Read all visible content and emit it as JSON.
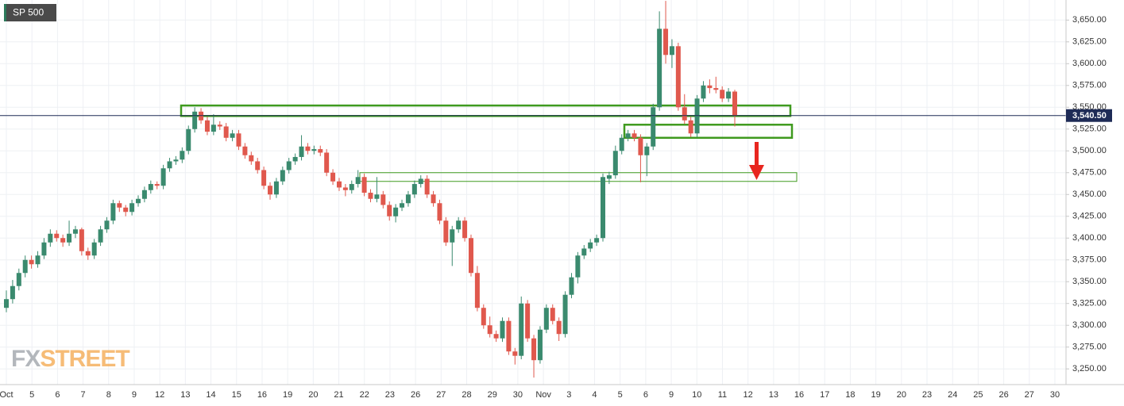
{
  "chart_data": {
    "type": "candlestick",
    "title": "SP 500",
    "watermark": [
      "FX",
      "STREET"
    ],
    "up_color": "#3a8a6e",
    "down_color": "#e0584d",
    "zone_color": "#3f9a1f",
    "grid": true,
    "ylim": [
      3232,
      3673
    ],
    "yticks": [
      {
        "value": 3250,
        "label": "3,250.00"
      },
      {
        "value": 3275,
        "label": "3,275.00"
      },
      {
        "value": 3300,
        "label": "3,300.00"
      },
      {
        "value": 3325,
        "label": "3,325.00"
      },
      {
        "value": 3350,
        "label": "3,350.00"
      },
      {
        "value": 3375,
        "label": "3,375.00"
      },
      {
        "value": 3400,
        "label": "3,400.00"
      },
      {
        "value": 3425,
        "label": "3,425.00"
      },
      {
        "value": 3450,
        "label": "3,450.00"
      },
      {
        "value": 3475,
        "label": "3,475.00"
      },
      {
        "value": 3500,
        "label": "3,500.00"
      },
      {
        "value": 3525,
        "label": "3,525.00"
      },
      {
        "value": 3550,
        "label": "3,550.00"
      },
      {
        "value": 3575,
        "label": "3,575.00"
      },
      {
        "value": 3600,
        "label": "3,600.00"
      },
      {
        "value": 3625,
        "label": "3,625.00"
      },
      {
        "value": 3650,
        "label": "3,650.00"
      }
    ],
    "last_price": {
      "value": 3540.5,
      "label": "3,540.50"
    },
    "zones": [
      [
        3540,
        3552
      ],
      [
        3515,
        3530
      ],
      [
        3465,
        3475
      ]
    ],
    "categories": [
      "Oct",
      "5",
      "6",
      "7",
      "8",
      "9",
      "12",
      "13",
      "14",
      "15",
      "16",
      "19",
      "20",
      "21",
      "22",
      "23",
      "26",
      "27",
      "28",
      "29",
      "30",
      "Nov",
      "3",
      "4",
      "5",
      "6",
      "9",
      "10",
      "11",
      "12",
      "13",
      "16",
      "17",
      "18",
      "19",
      "20",
      "23",
      "24",
      "25",
      "26",
      "27",
      "30"
    ],
    "candles": [
      [
        3320,
        3340,
        3315,
        3330
      ],
      [
        3330,
        3352,
        3325,
        3345
      ],
      [
        3345,
        3365,
        3340,
        3360
      ],
      [
        3360,
        3380,
        3355,
        3375
      ],
      [
        3375,
        3380,
        3365,
        3370
      ],
      [
        3370,
        3385,
        3366,
        3380
      ],
      [
        3380,
        3400,
        3376,
        3395
      ],
      [
        3395,
        3410,
        3390,
        3405
      ],
      [
        3405,
        3409,
        3396,
        3400
      ],
      [
        3400,
        3404,
        3390,
        3395
      ],
      [
        3395,
        3420,
        3391,
        3405
      ],
      [
        3405,
        3414,
        3400,
        3410
      ],
      [
        3410,
        3412,
        3380,
        3385
      ],
      [
        3385,
        3389,
        3375,
        3380
      ],
      [
        3380,
        3399,
        3376,
        3395
      ],
      [
        3395,
        3414,
        3391,
        3410
      ],
      [
        3410,
        3424,
        3406,
        3420
      ],
      [
        3420,
        3444,
        3416,
        3440
      ],
      [
        3440,
        3443,
        3430,
        3435
      ],
      [
        3435,
        3438,
        3425,
        3430
      ],
      [
        3430,
        3444,
        3426,
        3440
      ],
      [
        3440,
        3449,
        3436,
        3445
      ],
      [
        3445,
        3459,
        3441,
        3455
      ],
      [
        3455,
        3466,
        3451,
        3462
      ],
      [
        3462,
        3465,
        3456,
        3460
      ],
      [
        3460,
        3484,
        3456,
        3480
      ],
      [
        3480,
        3492,
        3476,
        3488
      ],
      [
        3488,
        3494,
        3484,
        3490
      ],
      [
        3490,
        3504,
        3486,
        3500
      ],
      [
        3500,
        3529,
        3496,
        3525
      ],
      [
        3525,
        3550,
        3521,
        3545
      ],
      [
        3545,
        3549,
        3531,
        3535
      ],
      [
        3535,
        3539,
        3518,
        3522
      ],
      [
        3522,
        3542,
        3518,
        3530
      ],
      [
        3530,
        3534,
        3524,
        3528
      ],
      [
        3528,
        3532,
        3511,
        3515
      ],
      [
        3515,
        3524,
        3511,
        3520
      ],
      [
        3520,
        3524,
        3501,
        3505
      ],
      [
        3505,
        3509,
        3491,
        3495
      ],
      [
        3495,
        3499,
        3484,
        3488
      ],
      [
        3488,
        3492,
        3474,
        3478
      ],
      [
        3478,
        3482,
        3456,
        3460
      ],
      [
        3460,
        3464,
        3444,
        3450
      ],
      [
        3450,
        3469,
        3446,
        3465
      ],
      [
        3465,
        3482,
        3461,
        3478
      ],
      [
        3478,
        3492,
        3474,
        3488
      ],
      [
        3488,
        3497,
        3484,
        3493
      ],
      [
        3493,
        3518,
        3489,
        3505
      ],
      [
        3505,
        3509,
        3496,
        3500
      ],
      [
        3500,
        3506,
        3496,
        3502
      ],
      [
        3502,
        3506,
        3494,
        3498
      ],
      [
        3498,
        3502,
        3471,
        3475
      ],
      [
        3475,
        3479,
        3461,
        3465
      ],
      [
        3465,
        3469,
        3454,
        3458
      ],
      [
        3458,
        3462,
        3448,
        3455
      ],
      [
        3455,
        3466,
        3451,
        3462
      ],
      [
        3462,
        3478,
        3458,
        3470
      ],
      [
        3470,
        3474,
        3448,
        3452
      ],
      [
        3452,
        3456,
        3441,
        3445
      ],
      [
        3445,
        3470,
        3441,
        3450
      ],
      [
        3450,
        3454,
        3434,
        3438
      ],
      [
        3438,
        3442,
        3420,
        3425
      ],
      [
        3425,
        3439,
        3418,
        3435
      ],
      [
        3435,
        3444,
        3431,
        3440
      ],
      [
        3440,
        3454,
        3436,
        3450
      ],
      [
        3450,
        3466,
        3446,
        3462
      ],
      [
        3462,
        3472,
        3458,
        3468
      ],
      [
        3468,
        3472,
        3446,
        3450
      ],
      [
        3450,
        3454,
        3436,
        3440
      ],
      [
        3440,
        3444,
        3416,
        3420
      ],
      [
        3420,
        3424,
        3391,
        3395
      ],
      [
        3395,
        3414,
        3368,
        3410
      ],
      [
        3410,
        3424,
        3406,
        3420
      ],
      [
        3420,
        3424,
        3396,
        3400
      ],
      [
        3400,
        3404,
        3356,
        3360
      ],
      [
        3360,
        3368,
        3316,
        3320
      ],
      [
        3320,
        3324,
        3296,
        3300
      ],
      [
        3300,
        3310,
        3286,
        3290
      ],
      [
        3290,
        3294,
        3281,
        3285
      ],
      [
        3285,
        3309,
        3281,
        3305
      ],
      [
        3305,
        3309,
        3266,
        3270
      ],
      [
        3270,
        3274,
        3255,
        3265
      ],
      [
        3265,
        3333,
        3261,
        3325
      ],
      [
        3325,
        3329,
        3281,
        3285
      ],
      [
        3285,
        3289,
        3240,
        3260
      ],
      [
        3260,
        3299,
        3256,
        3295
      ],
      [
        3295,
        3324,
        3291,
        3320
      ],
      [
        3320,
        3324,
        3301,
        3305
      ],
      [
        3305,
        3309,
        3282,
        3290
      ],
      [
        3290,
        3339,
        3286,
        3335
      ],
      [
        3335,
        3360,
        3331,
        3355
      ],
      [
        3355,
        3384,
        3348,
        3380
      ],
      [
        3380,
        3392,
        3376,
        3388
      ],
      [
        3388,
        3399,
        3384,
        3395
      ],
      [
        3395,
        3404,
        3391,
        3400
      ],
      [
        3400,
        3474,
        3396,
        3470
      ],
      [
        3468,
        3476,
        3462,
        3472
      ],
      [
        3472,
        3506,
        3468,
        3500
      ],
      [
        3500,
        3519,
        3496,
        3515
      ],
      [
        3515,
        3524,
        3511,
        3520
      ],
      [
        3520,
        3524,
        3511,
        3515
      ],
      [
        3515,
        3519,
        3464,
        3495
      ],
      [
        3495,
        3509,
        3471,
        3505
      ],
      [
        3505,
        3554,
        3501,
        3550
      ],
      [
        3550,
        3660,
        3546,
        3640
      ],
      [
        3640,
        3672,
        3600,
        3610
      ],
      [
        3610,
        3628,
        3595,
        3620
      ],
      [
        3620,
        3624,
        3546,
        3550
      ],
      [
        3550,
        3565,
        3531,
        3535
      ],
      [
        3535,
        3539,
        3516,
        3520
      ],
      [
        3520,
        3564,
        3516,
        3560
      ],
      [
        3560,
        3580,
        3556,
        3575
      ],
      [
        3575,
        3582,
        3566,
        3572
      ],
      [
        3572,
        3585,
        3566,
        3570
      ],
      [
        3570,
        3574,
        3556,
        3560
      ],
      [
        3560,
        3572,
        3556,
        3568
      ],
      [
        3568,
        3570,
        3528,
        3540.5
      ]
    ]
  }
}
